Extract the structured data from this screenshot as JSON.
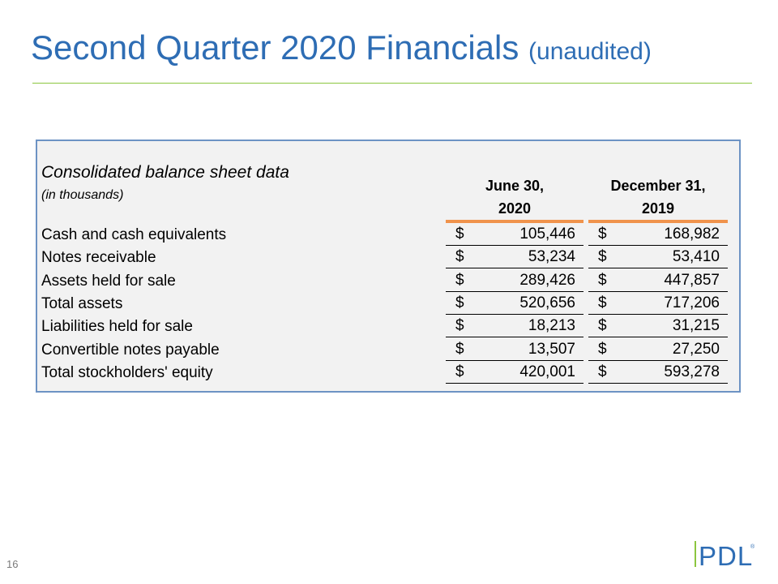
{
  "slide": {
    "title_main": "Second Quarter 2020 Financials",
    "title_sub": "(unaudited)",
    "page_number": "16",
    "logo_text": "PDL",
    "logo_mark": "®"
  },
  "table": {
    "heading": "Consolidated balance sheet data",
    "subheading": "(in thousands)",
    "col1_line1": "June 30,",
    "col1_line2": "2020",
    "col2_line1": "December 31,",
    "col2_line2": "2019",
    "currency": "$",
    "rows": [
      {
        "label": "Cash and cash equivalents",
        "v1": "105,446",
        "v2": "168,982"
      },
      {
        "label": "Notes receivable",
        "v1": "53,234",
        "v2": "53,410"
      },
      {
        "label": "Assets held for sale",
        "v1": "289,426",
        "v2": "447,857"
      },
      {
        "label": "Total assets",
        "v1": "520,656",
        "v2": "717,206"
      },
      {
        "label": "Liabilities held for sale",
        "v1": "18,213",
        "v2": "31,215"
      },
      {
        "label": "Convertible notes payable",
        "v1": "13,507",
        "v2": "27,250"
      },
      {
        "label": "Total stockholders' equity",
        "v1": "420,001",
        "v2": "593,278"
      }
    ]
  },
  "colors": {
    "title": "#2e6db4",
    "rule": "#8cc63f",
    "accent": "#f0934c",
    "border": "#6d93c4",
    "logo": "#2e6db4"
  }
}
